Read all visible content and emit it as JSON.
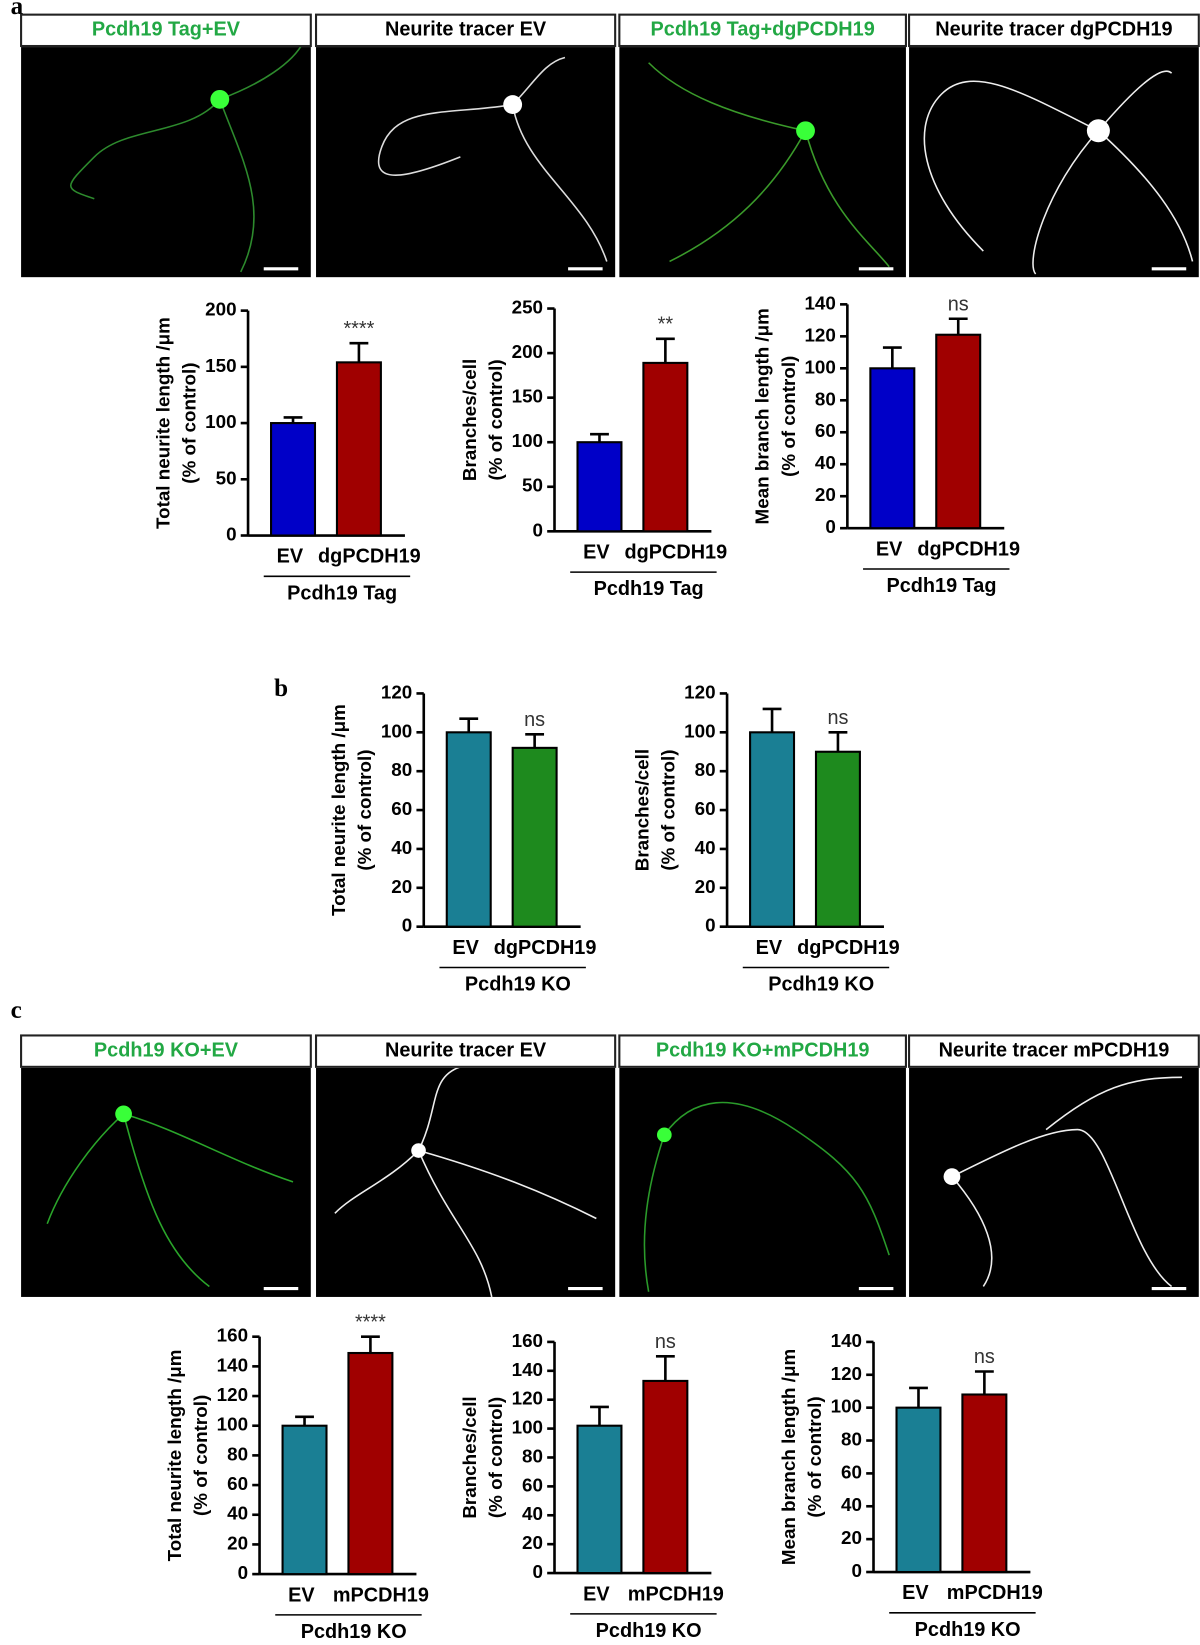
{
  "panel_letters": [
    "a",
    "b",
    "c"
  ],
  "images": [
    {
      "label": "Pcdh19 Tag+EV",
      "color": "#22a844"
    },
    {
      "label": "Neurite tracer EV",
      "color": "#000000"
    },
    {
      "label": "Pcdh19 Tag+dgPCDH19",
      "color": "#22a844"
    },
    {
      "label": "Neurite tracer dgPCDH19",
      "color": "#000000"
    },
    {
      "label": "Pcdh19 KO+EV",
      "color": "#22a844"
    },
    {
      "label": "Neurite tracer EV",
      "color": "#000000"
    },
    {
      "label": "Pcdh19 KO+mPCDH19",
      "color": "#22a844"
    },
    {
      "label": "Neurite tracer mPCDH19",
      "color": "#000000"
    }
  ],
  "chart_data": [
    {
      "type": "bar",
      "ylabel": [
        "Total neurite length /μm",
        "(% of control)"
      ],
      "categories": [
        "EV",
        "dgPCDH19"
      ],
      "group": "Pcdh19 Tag",
      "values": [
        100,
        154
      ],
      "errors": [
        5,
        17
      ],
      "colors": [
        "#0000c8",
        "#a00000"
      ],
      "annotation": "****",
      "ylim": [
        0,
        200
      ],
      "yticks": [
        0,
        50,
        100,
        150,
        200
      ]
    },
    {
      "type": "bar",
      "ylabel": [
        "Branches/cell",
        "(% of control)"
      ],
      "categories": [
        "EV",
        "dgPCDH19"
      ],
      "group": "Pcdh19 Tag",
      "values": [
        100,
        189
      ],
      "errors": [
        9,
        27
      ],
      "colors": [
        "#0000c8",
        "#a00000"
      ],
      "annotation": "**",
      "ylim": [
        0,
        250
      ],
      "yticks": [
        0,
        50,
        100,
        150,
        200,
        250
      ]
    },
    {
      "type": "bar",
      "ylabel": [
        "Mean branch length /μm",
        "(% of control)"
      ],
      "categories": [
        "EV",
        "dgPCDH19"
      ],
      "group": "Pcdh19 Tag",
      "values": [
        100,
        121
      ],
      "errors": [
        13,
        10
      ],
      "colors": [
        "#0000c8",
        "#a00000"
      ],
      "annotation": "ns",
      "ylim": [
        0,
        140
      ],
      "yticks": [
        0,
        20,
        40,
        60,
        80,
        100,
        120,
        140
      ]
    },
    {
      "type": "bar",
      "ylabel": [
        "Total neurite length /μm",
        "(% of control)"
      ],
      "categories": [
        "EV",
        "dgPCDH19"
      ],
      "group": "Pcdh19 KO",
      "values": [
        100,
        92
      ],
      "errors": [
        7,
        7
      ],
      "colors": [
        "#1a7f94",
        "#1e8a1e"
      ],
      "annotation": "ns",
      "ylim": [
        0,
        120
      ],
      "yticks": [
        0,
        20,
        40,
        60,
        80,
        100,
        120
      ]
    },
    {
      "type": "bar",
      "ylabel": [
        "Branches/cell",
        "(% of control)"
      ],
      "categories": [
        "EV",
        "dgPCDH19"
      ],
      "group": "Pcdh19 KO",
      "values": [
        100,
        90
      ],
      "errors": [
        12,
        10
      ],
      "colors": [
        "#1a7f94",
        "#1e8a1e"
      ],
      "annotation": "ns",
      "ylim": [
        0,
        120
      ],
      "yticks": [
        0,
        20,
        40,
        60,
        80,
        100,
        120
      ]
    },
    {
      "type": "bar",
      "ylabel": [
        "Total neurite length /μm",
        "(% of control)"
      ],
      "categories": [
        "EV",
        "mPCDH19"
      ],
      "group": "Pcdh19 KO",
      "values": [
        100,
        149
      ],
      "errors": [
        6,
        11
      ],
      "colors": [
        "#1a7f94",
        "#a00000"
      ],
      "annotation": "****",
      "ylim": [
        0,
        160
      ],
      "yticks": [
        0,
        20,
        40,
        60,
        80,
        100,
        120,
        140,
        160
      ]
    },
    {
      "type": "bar",
      "ylabel": [
        "Branches/cell",
        "(% of control)"
      ],
      "categories": [
        "EV",
        "mPCDH19"
      ],
      "group": "Pcdh19 KO",
      "values": [
        102,
        133
      ],
      "errors": [
        13,
        17
      ],
      "colors": [
        "#1a7f94",
        "#a00000"
      ],
      "annotation": "ns",
      "ylim": [
        0,
        160
      ],
      "yticks": [
        0,
        20,
        40,
        60,
        80,
        100,
        120,
        140,
        160
      ]
    },
    {
      "type": "bar",
      "ylabel": [
        "Mean branch length /μm",
        "(% of control)"
      ],
      "categories": [
        "EV",
        "mPCDH19"
      ],
      "group": "Pcdh19 KO",
      "values": [
        100,
        108
      ],
      "errors": [
        12,
        14
      ],
      "colors": [
        "#1a7f94",
        "#a00000"
      ],
      "annotation": "ns",
      "ylim": [
        0,
        140
      ],
      "yticks": [
        0,
        20,
        40,
        60,
        80,
        100,
        120,
        140
      ]
    }
  ]
}
